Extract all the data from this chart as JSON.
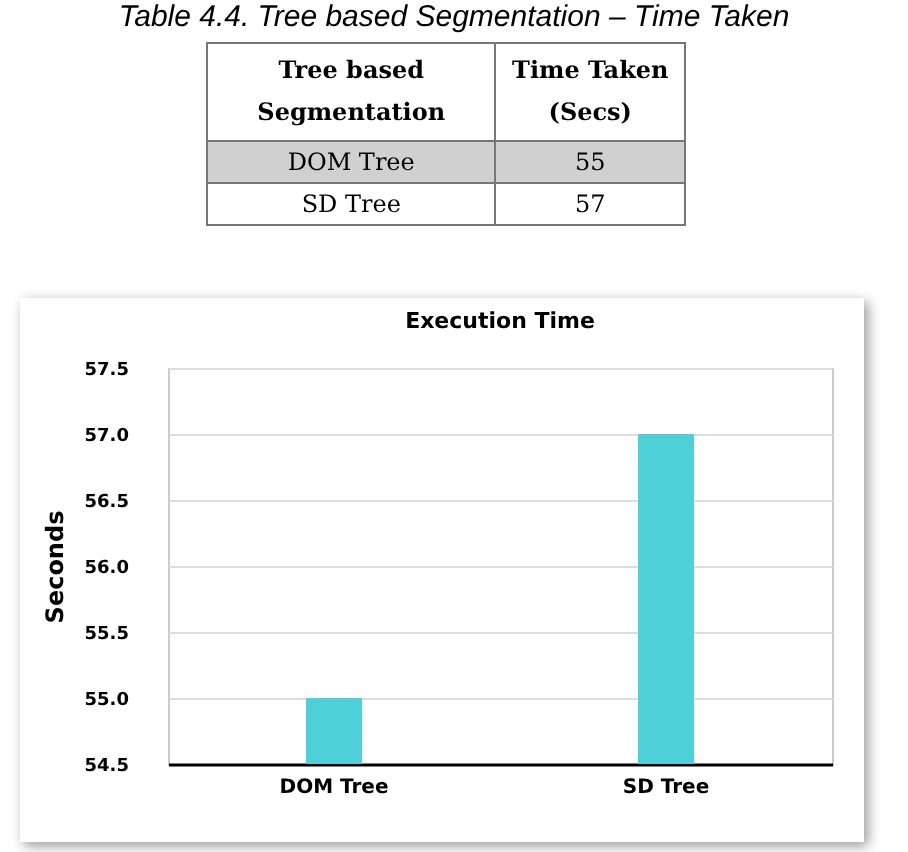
{
  "chart_data": [
    {
      "type": "other",
      "title": "Table 4.4. Tree based Segmentation – Time Taken",
      "categories": [
        "DOM Tree",
        "SD Tree"
      ],
      "values": [
        55,
        57
      ],
      "annotations": [
        "Tree based Segmentation",
        "Time Taken (Secs)"
      ],
      "data_labels": true
    },
    {
      "type": "bar",
      "title": "Execution Time",
      "ylabel": "Seconds",
      "categories": [
        "DOM Tree",
        "SD Tree"
      ],
      "values": [
        55,
        57
      ],
      "color": "#4dd0d7",
      "ylim": [
        54.5,
        57.5
      ],
      "yticks": [
        {
          "value": 54.5,
          "label": "54.5"
        },
        {
          "value": 55,
          "label": "55.0"
        },
        {
          "value": 55.5,
          "label": "55.5"
        },
        {
          "value": 56,
          "label": "56.0"
        },
        {
          "value": 56.5,
          "label": "56.5"
        },
        {
          "value": 57,
          "label": "57.0"
        },
        {
          "value": 57.5,
          "label": "57.5"
        }
      ],
      "grid": true
    }
  ]
}
